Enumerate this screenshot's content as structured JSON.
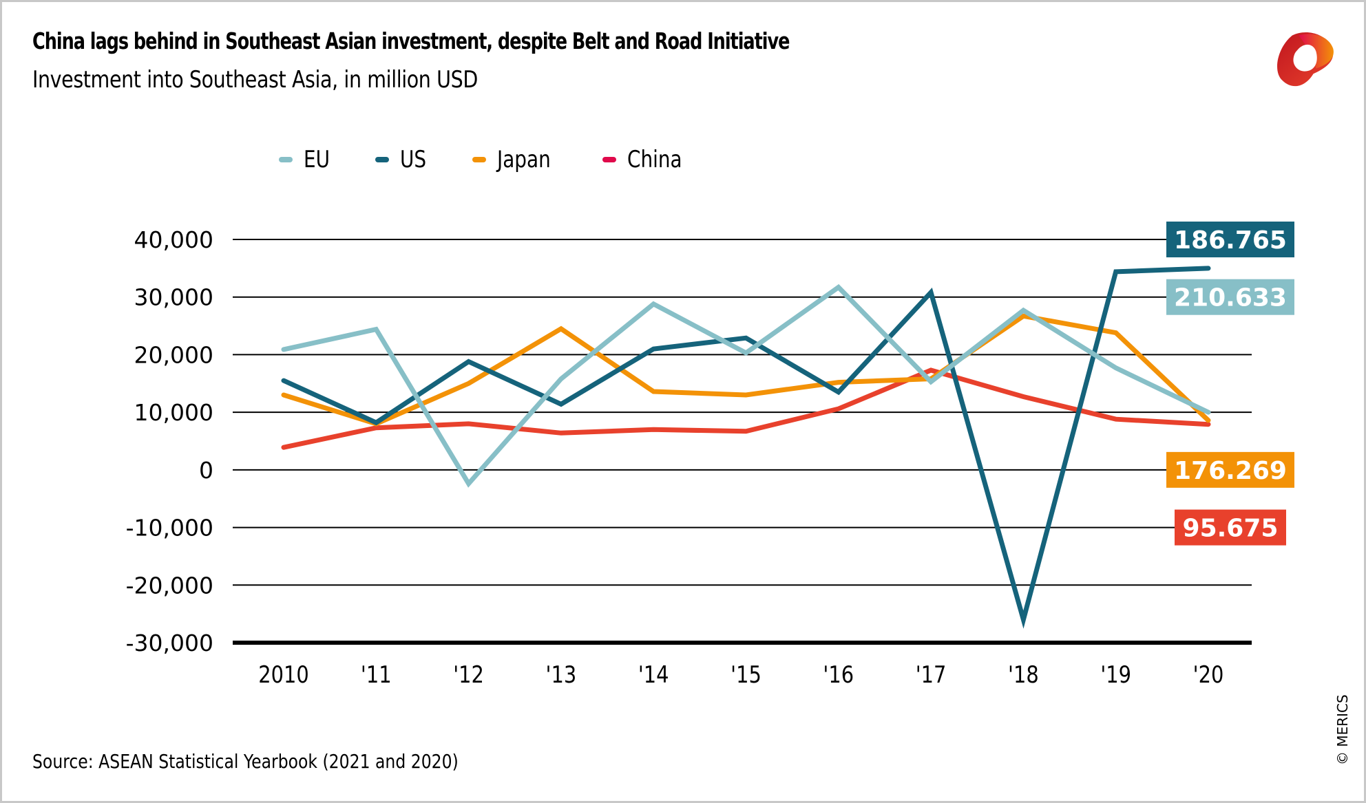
{
  "header": {
    "title": "China lags behind in Southeast Asian investment, despite Belt and Road Initiative",
    "subtitle": "Investment into Southeast Asia, in million USD"
  },
  "logo": {
    "icon": "merics-logo-icon"
  },
  "footer": {
    "source": "Source: ASEAN Statistical Yearbook (2021 and 2020)",
    "credit": "© MERICS"
  },
  "colors": {
    "EU": "#87bfc7",
    "US": "#15637b",
    "Japan": "#f39207",
    "China": "#e8412c",
    "China_legend": "#e0094b",
    "grid": "#000000"
  },
  "chart_data": {
    "type": "line",
    "title": "China lags behind in Southeast Asian investment, despite Belt and Road Initiative",
    "subtitle": "Investment into Southeast Asia, in million USD",
    "xlabel": "",
    "ylabel": "",
    "categories": [
      "2010",
      "'11",
      "'12",
      "'13",
      "'14",
      "'15",
      "'16",
      "'17",
      "'18",
      "'19",
      "'20"
    ],
    "ylim": [
      -30000,
      40000
    ],
    "yticks": [
      40000,
      30000,
      20000,
      10000,
      0,
      -10000,
      -20000,
      -30000
    ],
    "ytick_labels": [
      "40,000",
      "30,000",
      "20,000",
      "10,000",
      "0",
      "-10,000",
      "-20,000",
      "-30,000"
    ],
    "grid": true,
    "legend_position": "top-left",
    "series": [
      {
        "name": "EU",
        "values": [
          20900,
          24400,
          -2400,
          15800,
          28800,
          20300,
          31700,
          15300,
          27700,
          17700,
          10000
        ],
        "total_label": "210.633"
      },
      {
        "name": "US",
        "values": [
          15500,
          8200,
          18800,
          11400,
          21000,
          22900,
          13500,
          30800,
          -26000,
          34400,
          35000
        ],
        "total_label": "186.765"
      },
      {
        "name": "Japan",
        "values": [
          13000,
          8000,
          15000,
          24500,
          13600,
          13000,
          15200,
          15800,
          26700,
          23800,
          8600
        ],
        "total_label": "176.269"
      },
      {
        "name": "China",
        "values": [
          3900,
          7300,
          8000,
          6400,
          7000,
          6700,
          10600,
          17300,
          12700,
          8800,
          7900
        ],
        "total_label": "95.675"
      }
    ],
    "annotations": [
      {
        "series": "US",
        "text": "186.765"
      },
      {
        "series": "EU",
        "text": "210.633"
      },
      {
        "series": "Japan",
        "text": "176.269"
      },
      {
        "series": "China",
        "text": "95.675"
      }
    ]
  }
}
